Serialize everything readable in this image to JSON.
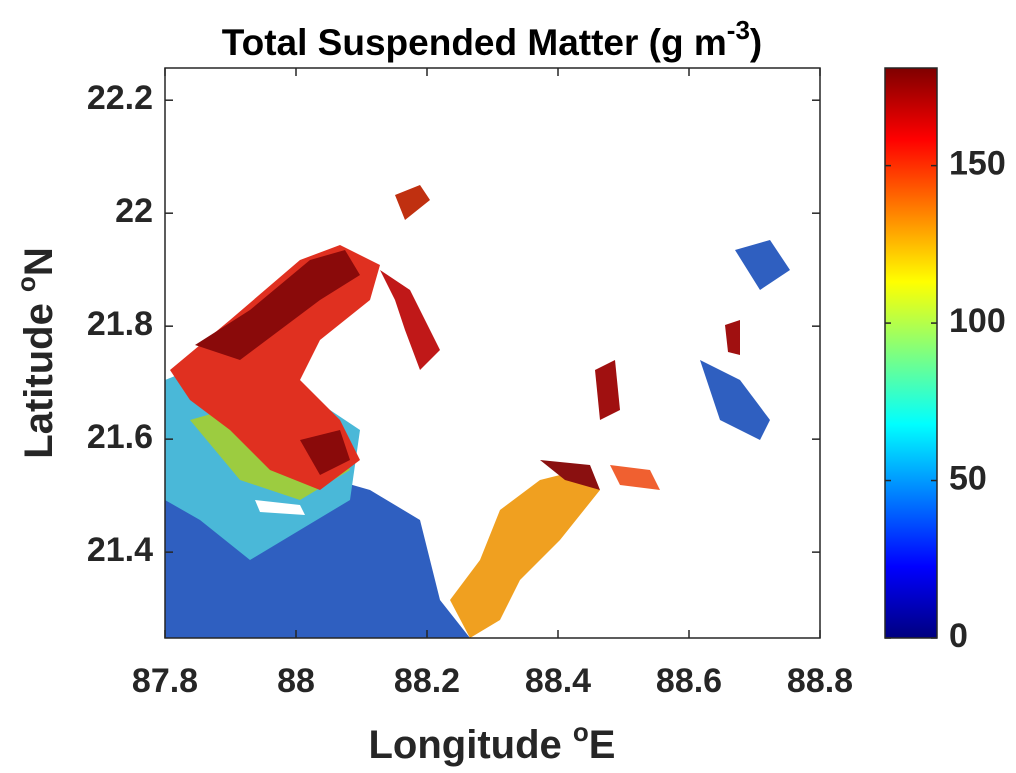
{
  "chart_data": {
    "type": "map",
    "title": {
      "text": "Total Suspended Matter (g m",
      "superscript": "-3",
      "suffix": ")"
    },
    "xlabel": {
      "text": "Longitude ",
      "superscript": "o",
      "suffix": "E"
    },
    "ylabel": {
      "text": "Latitude ",
      "superscript": "o",
      "suffix": "N"
    },
    "xlim": [
      87.8,
      88.8
    ],
    "xticks": [
      87.8,
      88,
      88.2,
      88.4,
      88.6,
      88.8
    ],
    "ylim": [
      21.248,
      22.257
    ],
    "yticks": [
      21.4,
      21.6,
      21.8,
      22,
      22.2
    ],
    "colorbar": {
      "clim": [
        0,
        181
      ],
      "ticks": [
        0,
        50,
        100,
        150
      ],
      "colors": [
        "#00007f",
        "#0000ff",
        "#007fff",
        "#00ffff",
        "#7fff7f",
        "#ffff00",
        "#ff7f00",
        "#ff0000",
        "#7f0000"
      ]
    }
  }
}
